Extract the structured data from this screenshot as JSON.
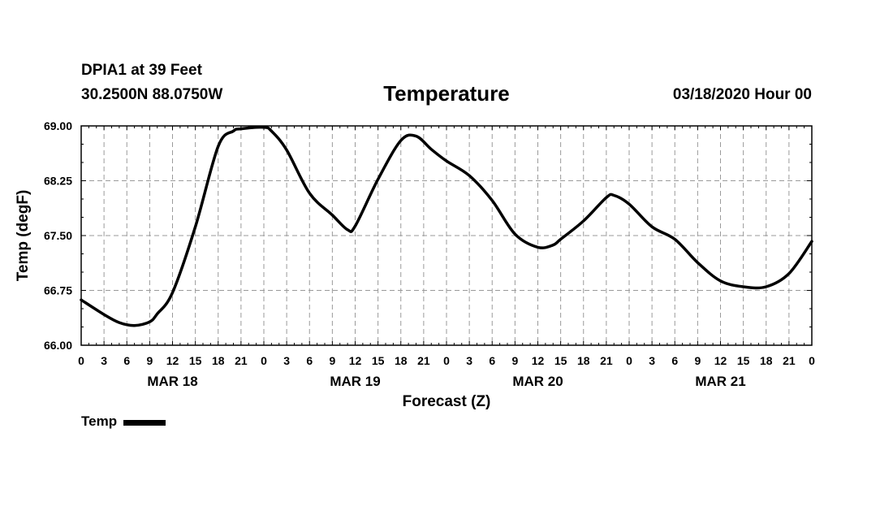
{
  "header": {
    "station": "DPIA1 at 39 Feet",
    "coords": "30.2500N 88.0750W",
    "title": "Temperature",
    "datetime": "03/18/2020 Hour 00"
  },
  "chart_data": {
    "type": "line",
    "title": "Temperature",
    "xlabel": "Forecast (Z)",
    "ylabel": "Temp (degF)",
    "ylim": [
      66.0,
      69.0
    ],
    "yticks": [
      "66.00",
      "66.75",
      "67.50",
      "68.25",
      "69.00"
    ],
    "xlim": [
      0,
      96
    ],
    "xtick_hours": [
      0,
      3,
      6,
      9,
      12,
      15,
      18,
      21,
      24,
      27,
      30,
      33,
      36,
      39,
      42,
      45,
      48,
      51,
      54,
      57,
      60,
      63,
      66,
      69,
      72,
      75,
      78,
      81,
      84,
      87,
      90,
      93,
      96
    ],
    "xtick_labels": [
      "0",
      "3",
      "6",
      "9",
      "12",
      "15",
      "18",
      "21",
      "0",
      "3",
      "6",
      "9",
      "12",
      "15",
      "18",
      "21",
      "0",
      "3",
      "6",
      "9",
      "12",
      "15",
      "18",
      "21",
      "0",
      "3",
      "6",
      "9",
      "12",
      "15",
      "18",
      "21",
      "0"
    ],
    "day_labels": [
      {
        "hour": 12,
        "label": "MAR 18"
      },
      {
        "hour": 36,
        "label": "MAR 19"
      },
      {
        "hour": 60,
        "label": "MAR 20"
      },
      {
        "hour": 84,
        "label": "MAR 21"
      }
    ],
    "grid": true,
    "legend_position": "bottom-left",
    "series": [
      {
        "name": "Temp",
        "color": "#000000",
        "x": [
          0,
          3,
          5,
          7,
          9,
          10,
          12,
          15,
          18,
          20,
          21,
          24,
          25,
          27,
          30,
          33,
          35,
          36,
          39,
          42,
          44,
          46,
          48,
          51,
          54,
          57,
          60,
          62,
          63,
          66,
          69,
          70,
          72,
          75,
          78,
          81,
          84,
          87,
          90,
          93,
          96
        ],
        "y": [
          66.62,
          66.42,
          66.31,
          66.27,
          66.32,
          66.43,
          66.72,
          67.62,
          68.72,
          68.93,
          68.96,
          68.98,
          68.93,
          68.67,
          68.08,
          67.78,
          67.58,
          67.63,
          68.27,
          68.8,
          68.86,
          68.68,
          68.52,
          68.32,
          67.98,
          67.52,
          67.34,
          67.37,
          67.45,
          67.7,
          68.02,
          68.05,
          67.93,
          67.62,
          67.45,
          67.13,
          66.88,
          66.8,
          66.8,
          66.98,
          67.42
        ]
      }
    ]
  },
  "legend": {
    "label": "Temp",
    "color": "#000000"
  }
}
